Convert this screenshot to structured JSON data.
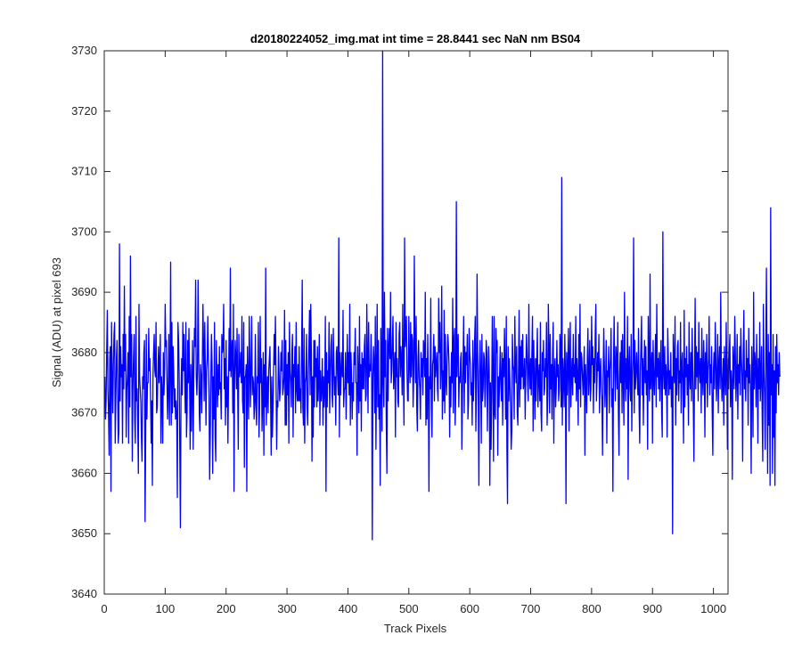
{
  "chart_data": {
    "type": "line",
    "title": "d20180224052_img.mat int time = 28.8441 sec  NaN nm BS04",
    "xlabel": "Track Pixels",
    "ylabel": "Signal (ADU) at pixel 693",
    "xlim": [
      0,
      1024
    ],
    "ylim": [
      3640,
      3730
    ],
    "xticks": [
      0,
      100,
      200,
      300,
      400,
      500,
      600,
      700,
      800,
      900,
      1000
    ],
    "yticks": [
      3640,
      3650,
      3660,
      3670,
      3680,
      3690,
      3700,
      3710,
      3720,
      3730
    ],
    "grid": false,
    "series": [
      {
        "color": "#0000ff",
        "x_start": 1,
        "x_step": 1,
        "values": [
          3676,
          3669,
          3672,
          3680,
          3687,
          3674,
          3670,
          3663,
          3679,
          3681,
          3657,
          3685,
          3676,
          3670,
          3678,
          3683,
          3685,
          3665,
          3672,
          3679,
          3682,
          3674,
          3665,
          3667,
          3698,
          3672,
          3681,
          3676,
          3678,
          3665,
          3683,
          3674,
          3691,
          3677,
          3683,
          3666,
          3674,
          3676,
          3680,
          3665,
          3686,
          3671,
          3696,
          3676,
          3683,
          3662,
          3674,
          3679,
          3683,
          3669,
          3665,
          3686,
          3672,
          3674,
          3668,
          3660,
          3688,
          3676,
          3674,
          3672,
          3666,
          3662,
          3676,
          3674,
          3680,
          3682,
          3652,
          3666,
          3683,
          3669,
          3675,
          3675,
          3684,
          3677,
          3679,
          3673,
          3665,
          3672,
          3658,
          3676,
          3680,
          3683,
          3677,
          3676,
          3685,
          3670,
          3671,
          3676,
          3681,
          3675,
          3678,
          3683,
          3665,
          3676,
          3673,
          3665,
          3680,
          3673,
          3677,
          3688,
          3681,
          3682,
          3675,
          3669,
          3674,
          3683,
          3668,
          3677,
          3695,
          3668,
          3685,
          3670,
          3681,
          3677,
          3671,
          3674,
          3669,
          3672,
          3669,
          3656,
          3685,
          3682,
          3676,
          3664,
          3651,
          3673,
          3679,
          3673,
          3685,
          3677,
          3683,
          3676,
          3670,
          3685,
          3666,
          3670,
          3682,
          3675,
          3684,
          3676,
          3664,
          3678,
          3667,
          3674,
          3682,
          3664,
          3676,
          3684,
          3681,
          3692,
          3676,
          3673,
          3677,
          3692,
          3680,
          3670,
          3667,
          3678,
          3676,
          3670,
          3678,
          3688,
          3681,
          3672,
          3685,
          3677,
          3668,
          3677,
          3679,
          3686,
          3679,
          3673,
          3659,
          3666,
          3676,
          3683,
          3678,
          3660,
          3676,
          3669,
          3685,
          3666,
          3662,
          3682,
          3676,
          3671,
          3678,
          3673,
          3681,
          3674,
          3675,
          3669,
          3683,
          3680,
          3681,
          3688,
          3674,
          3679,
          3668,
          3682,
          3671,
          3676,
          3665,
          3675,
          3684,
          3677,
          3694,
          3676,
          3680,
          3682,
          3670,
          3688,
          3657,
          3676,
          3682,
          3679,
          3674,
          3684,
          3674,
          3664,
          3683,
          3676,
          3677,
          3680,
          3675,
          3686,
          3672,
          3670,
          3685,
          3661,
          3676,
          3676,
          3678,
          3657,
          3681,
          3675,
          3669,
          3686,
          3678,
          3671,
          3678,
          3686,
          3673,
          3676,
          3675,
          3669,
          3672,
          3683,
          3671,
          3668,
          3676,
          3675,
          3685,
          3666,
          3671,
          3686,
          3675,
          3679,
          3667,
          3673,
          3680,
          3663,
          3678,
          3671,
          3694,
          3668,
          3673,
          3676,
          3670,
          3677,
          3679,
          3681,
          3673,
          3663,
          3676,
          3666,
          3671,
          3677,
          3683,
          3678,
          3686,
          3676,
          3664,
          3672,
          3671,
          3681,
          3676,
          3672,
          3674,
          3680,
          3677,
          3682,
          3673,
          3674,
          3676,
          3687,
          3668,
          3682,
          3668,
          3678,
          3673,
          3680,
          3665,
          3685,
          3677,
          3675,
          3671,
          3680,
          3683,
          3666,
          3678,
          3676,
          3681,
          3670,
          3685,
          3674,
          3672,
          3678,
          3672,
          3681,
          3672,
          3674,
          3670,
          3680,
          3692,
          3671,
          3668,
          3684,
          3665,
          3675,
          3676,
          3683,
          3671,
          3668,
          3676,
          3681,
          3687,
          3673,
          3688,
          3680,
          3662,
          3676,
          3666,
          3682,
          3671,
          3682,
          3676,
          3679,
          3671,
          3681,
          3672,
          3675,
          3683,
          3668,
          3677,
          3672,
          3674,
          3679,
          3668,
          3676,
          3671,
          3674,
          3686,
          3657,
          3680,
          3671,
          3677,
          3675,
          3685,
          3670,
          3676,
          3681,
          3683,
          3673,
          3671,
          3684,
          3678,
          3673,
          3676,
          3668,
          3680,
          3681,
          3676,
          3673,
          3699,
          3666,
          3680,
          3673,
          3677,
          3680,
          3676,
          3687,
          3671,
          3674,
          3674,
          3680,
          3669,
          3676,
          3683,
          3675,
          3680,
          3673,
          3688,
          3668,
          3680,
          3676,
          3669,
          3675,
          3672,
          3680,
          3678,
          3684,
          3675,
          3675,
          3663,
          3681,
          3676,
          3670,
          3686,
          3672,
          3678,
          3667,
          3680,
          3674,
          3679,
          3674,
          3681,
          3683,
          3672,
          3673,
          3688,
          3679,
          3670,
          3685,
          3676,
          3678,
          3677,
          3683,
          3676,
          3649,
          3676,
          3681,
          3678,
          3670,
          3686,
          3664,
          3677,
          3688,
          3671,
          3682,
          3669,
          3673,
          3658,
          3684,
          3676,
          3667,
          3730,
          3675,
          3671,
          3690,
          3676,
          3682,
          3668,
          3660,
          3684,
          3672,
          3681,
          3684,
          3679,
          3690,
          3675,
          3677,
          3682,
          3686,
          3674,
          3677,
          3680,
          3666,
          3685,
          3676,
          3679,
          3672,
          3671,
          3683,
          3685,
          3676,
          3681,
          3679,
          3673,
          3688,
          3677,
          3668,
          3699,
          3681,
          3683,
          3686,
          3677,
          3672,
          3672,
          3686,
          3678,
          3675,
          3685,
          3676,
          3683,
          3682,
          3671,
          3676,
          3696,
          3681,
          3675,
          3686,
          3671,
          3667,
          3679,
          3682,
          3676,
          3674,
          3669,
          3680,
          3676,
          3679,
          3673,
          3682,
          3681,
          3676,
          3690,
          3668,
          3679,
          3669,
          3683,
          3675,
          3657,
          3676,
          3674,
          3689,
          3671,
          3666,
          3678,
          3679,
          3683,
          3672,
          3681,
          3676,
          3678,
          3680,
          3674,
          3672,
          3689,
          3680,
          3685,
          3674,
          3678,
          3691,
          3669,
          3677,
          3672,
          3687,
          3670,
          3683,
          3676,
          3673,
          3679,
          3683,
          3681,
          3678,
          3666,
          3676,
          3671,
          3680,
          3675,
          3689,
          3670,
          3682,
          3684,
          3668,
          3673,
          3705,
          3676,
          3681,
          3683,
          3671,
          3676,
          3675,
          3679,
          3680,
          3664,
          3673,
          3678,
          3686,
          3670,
          3681,
          3675,
          3680,
          3678,
          3683,
          3669,
          3672,
          3684,
          3680,
          3678,
          3673,
          3675,
          3668,
          3682,
          3672,
          3676,
          3682,
          3686,
          3667,
          3674,
          3693,
          3680,
          3672,
          3658,
          3677,
          3682,
          3676,
          3665,
          3683,
          3672,
          3674,
          3680,
          3679,
          3671,
          3675,
          3682,
          3680,
          3667,
          3675,
          3681,
          3677,
          3658,
          3675,
          3664,
          3673,
          3686,
          3677,
          3662,
          3686,
          3670,
          3669,
          3684,
          3680,
          3682,
          3663,
          3676,
          3671,
          3676,
          3681,
          3675,
          3672,
          3680,
          3668,
          3679,
          3676,
          3684,
          3677,
          3669,
          3686,
          3664,
          3655,
          3681,
          3672,
          3679,
          3675,
          3671,
          3664,
          3667,
          3683,
          3678,
          3677,
          3669,
          3686,
          3678,
          3675,
          3681,
          3670,
          3668,
          3677,
          3687,
          3671,
          3681,
          3674,
          3682,
          3676,
          3683,
          3674,
          3675,
          3679,
          3669,
          3676,
          3683,
          3680,
          3675,
          3672,
          3688,
          3677,
          3674,
          3679,
          3673,
          3680,
          3686,
          3667,
          3682,
          3675,
          3669,
          3679,
          3672,
          3679,
          3684,
          3671,
          3676,
          3678,
          3672,
          3685,
          3670,
          3667,
          3680,
          3677,
          3682,
          3673,
          3674,
          3679,
          3676,
          3685,
          3668,
          3673,
          3688,
          3681,
          3670,
          3683,
          3674,
          3678,
          3669,
          3680,
          3685,
          3665,
          3677,
          3679,
          3671,
          3674,
          3682,
          3676,
          3678,
          3672,
          3674,
          3683,
          3680,
          3671,
          3709,
          3668,
          3679,
          3676,
          3671,
          3683,
          3677,
          3655,
          3680,
          3673,
          3678,
          3684,
          3667,
          3679,
          3685,
          3671,
          3676,
          3679,
          3673,
          3683,
          3676,
          3678,
          3675,
          3686,
          3672,
          3679,
          3676,
          3668,
          3683,
          3674,
          3688,
          3671,
          3680,
          3679,
          3676,
          3673,
          3677,
          3681,
          3663,
          3678,
          3675,
          3670,
          3679,
          3684,
          3673,
          3676,
          3682,
          3672,
          3674,
          3686,
          3678,
          3681,
          3670,
          3679,
          3675,
          3683,
          3688,
          3672,
          3676,
          3680,
          3677,
          3683,
          3670,
          3677,
          3679,
          3674,
          3672,
          3663,
          3676,
          3684,
          3678,
          3671,
          3675,
          3682,
          3665,
          3677,
          3676,
          3681,
          3670,
          3677,
          3679,
          3684,
          3671,
          3674,
          3657,
          3678,
          3686,
          3677,
          3672,
          3681,
          3679,
          3674,
          3685,
          3670,
          3663,
          3676,
          3680,
          3675,
          3682,
          3670,
          3683,
          3676,
          3668,
          3690,
          3677,
          3672,
          3679,
          3674,
          3686,
          3659,
          3678,
          3681,
          3674,
          3672,
          3683,
          3667,
          3676,
          3679,
          3699,
          3670,
          3682,
          3674,
          3677,
          3680,
          3676,
          3673,
          3684,
          3671,
          3665,
          3677,
          3681,
          3686,
          3673,
          3679,
          3668,
          3677,
          3682,
          3675,
          3681,
          3673,
          3677,
          3664,
          3686,
          3678,
          3672,
          3693,
          3674,
          3677,
          3680,
          3665,
          3682,
          3676,
          3673,
          3678,
          3683,
          3671,
          3688,
          3676,
          3679,
          3674,
          3680,
          3672,
          3678,
          3682,
          3670,
          3666,
          3700,
          3677,
          3674,
          3681,
          3673,
          3678,
          3676,
          3666,
          3684,
          3679,
          3673,
          3677,
          3674,
          3680,
          3671,
          3676,
          3650,
          3683,
          3678,
          3675,
          3686,
          3668,
          3679,
          3673,
          3681,
          3682,
          3672,
          3677,
          3675,
          3685,
          3670,
          3678,
          3680,
          3674,
          3665,
          3687,
          3671,
          3679,
          3676,
          3681,
          3673,
          3678,
          3668,
          3685,
          3676,
          3674,
          3680,
          3672,
          3684,
          3678,
          3671,
          3662,
          3677,
          3689,
          3674,
          3681,
          3676,
          3680,
          3672,
          3685,
          3677,
          3675,
          3679,
          3670,
          3684,
          3676,
          3673,
          3682,
          3678,
          3666,
          3680,
          3675,
          3683,
          3671,
          3677,
          3679,
          3686,
          3673,
          3678,
          3675,
          3681,
          3670,
          3663,
          3677,
          3680,
          3674,
          3685,
          3679,
          3672,
          3676,
          3683,
          3670,
          3678,
          3681,
          3674,
          3690,
          3677,
          3672,
          3675,
          3679,
          3668,
          3681,
          3676,
          3673,
          3685,
          3677,
          3664,
          3679,
          3674,
          3680,
          3683,
          3671,
          3677,
          3675,
          3659,
          3681,
          3678,
          3674,
          3686,
          3680,
          3672,
          3676,
          3683,
          3669,
          3678,
          3675,
          3681,
          3673,
          3684,
          3679,
          3676,
          3662,
          3680,
          3687,
          3674,
          3677,
          3672,
          3682,
          3676,
          3679,
          3668,
          3684,
          3675,
          3678,
          3673,
          3660,
          3681,
          3676,
          3666,
          3690,
          3674,
          3680,
          3678,
          3671,
          3683,
          3677,
          3665,
          3679,
          3674,
          3685,
          3672,
          3676,
          3681,
          3670,
          3662,
          3688,
          3677,
          3673,
          3664,
          3679,
          3694,
          3676,
          3660,
          3683,
          3668,
          3680,
          3658,
          3704,
          3673,
          3678,
          3660,
          3683,
          3666,
          3677,
          3658,
          3681,
          3670,
          3683,
          3675,
          3678,
          3673,
          3680,
          3676
        ]
      }
    ]
  }
}
